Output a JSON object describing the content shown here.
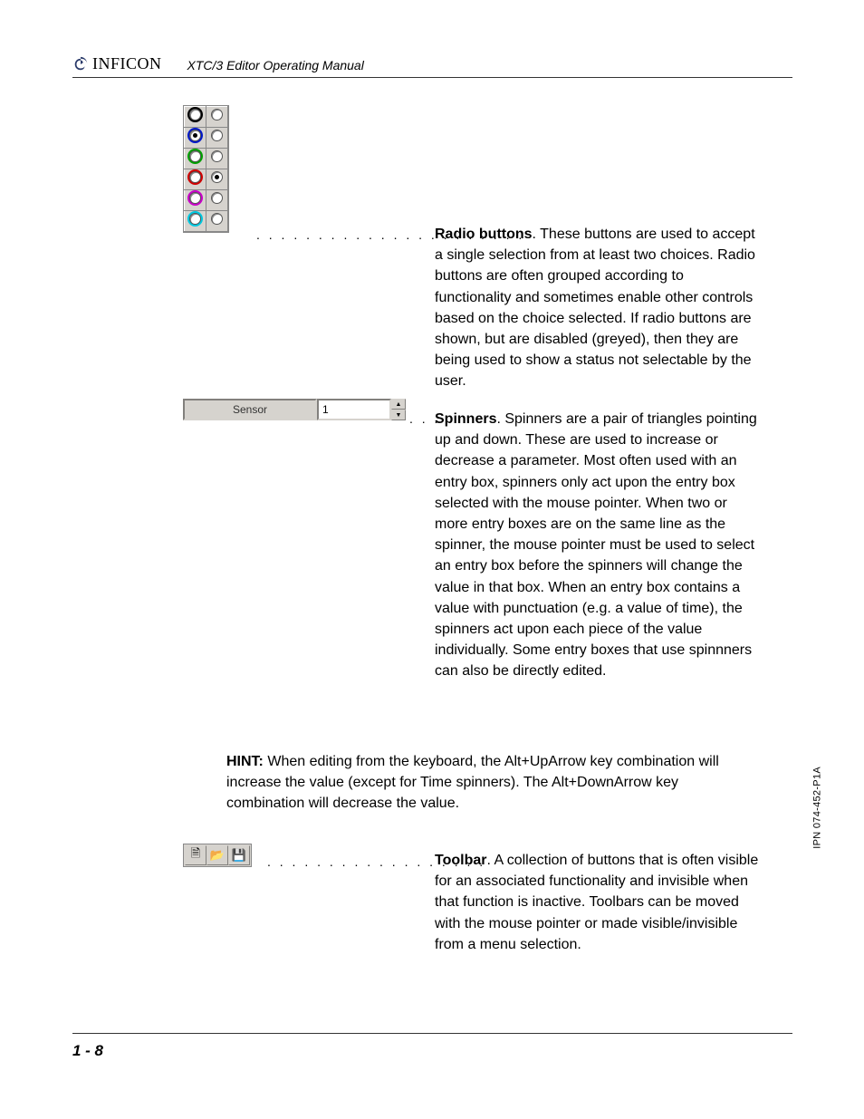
{
  "header": {
    "brand": "INFICON",
    "manual_title": "XTC/3 Editor Operating Manual"
  },
  "radio_figure": {
    "ring_colors": [
      "#000000",
      "#0018c8",
      "#00a000",
      "#d00000",
      "#c800c8",
      "#00c8e0"
    ],
    "selected_row": 1,
    "checked_row": 3
  },
  "radio_desc": {
    "dots": ". . . . . . . . . . . . . . . . . . . . . .",
    "term": "Radio buttons",
    "text": ". These buttons are used to accept a single selection from at least two choices. Radio buttons are often grouped according to functionality and sometimes enable other controls based on the choice selected. If radio buttons are shown, but are disabled (greyed), then they are being used to show a status not selectable by the user."
  },
  "spinner_figure": {
    "label": "Sensor",
    "value": "1"
  },
  "spinner_desc": {
    "dots": ". . .",
    "term": "Spinners",
    "text": ". Spinners are a pair of triangles pointing up and down. These are used to increase or decrease a parameter. Most often used with an entry box, spinners only act upon the entry box selected with the mouse pointer. When two or more entry boxes are on the same line as the spinner, the mouse pointer must be used to select an entry box before the spinners will change the value in that box. When an entry box contains a value with punctuation (e.g. a value of time), the spinners act upon each piece of the value individually. Some entry boxes that use spinnners can also be directly edited."
  },
  "hint": {
    "label": "HINT:",
    "text": "When editing from the keyboard, the Alt+UpArrow key combination will increase the value (except for Time spinners). The Alt+DownArrow key combination will decrease the value."
  },
  "toolbar_figure": {
    "icons": [
      "🗎",
      "📂",
      "💾"
    ]
  },
  "toolbar_desc": {
    "dots": ". . . . . . . . . . . . . . . . . .",
    "term": "Toolbar",
    "text": ". A collection of buttons that is often visible for an associated functionality and invisible when that function is inactive. Toolbars can be moved with the mouse pointer or made visible/invisible from a menu selection."
  },
  "side_note": "IPN 074-452-P1A",
  "page_number": "1 - 8"
}
